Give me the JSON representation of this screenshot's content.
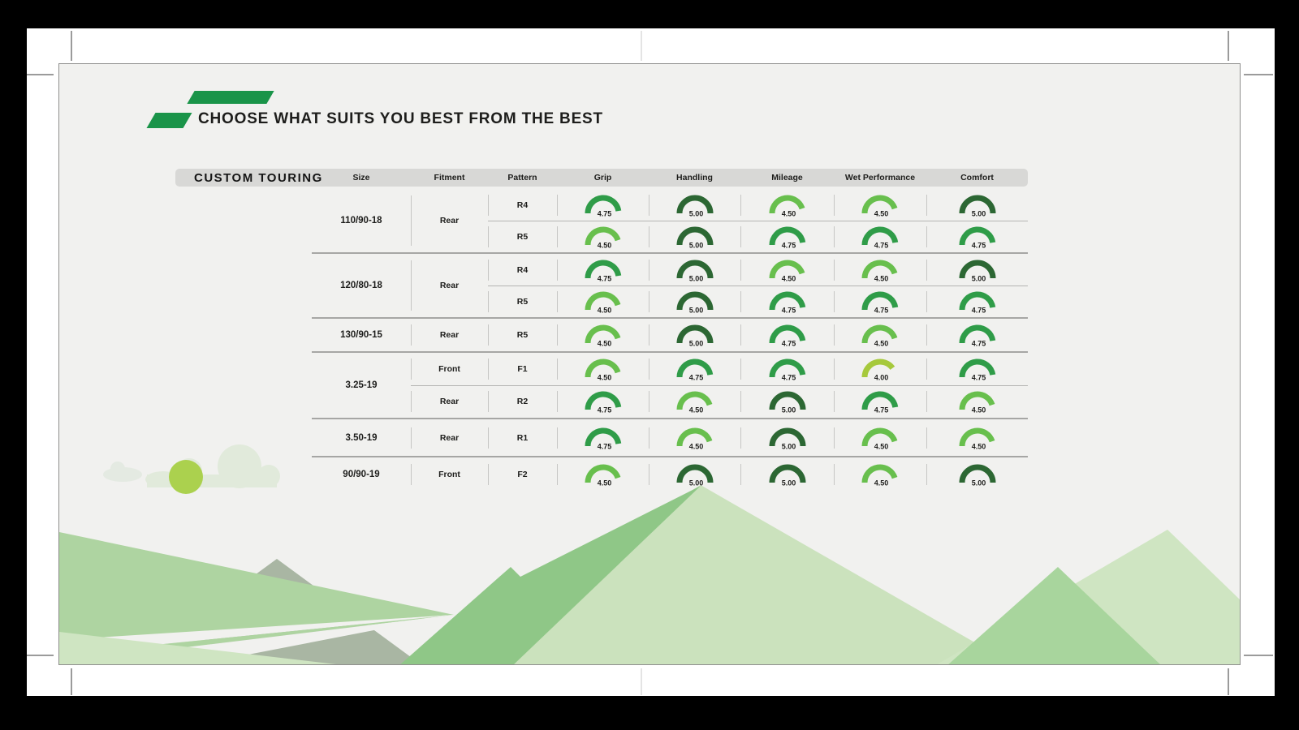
{
  "page": {
    "title": "CHOOSE WHAT SUITS YOU BEST FROM THE BEST"
  },
  "table": {
    "brand": "CUSTOM TOURING",
    "columns": [
      "Size",
      "Fitment",
      "Pattern",
      "Grip",
      "Handling",
      "Mileage",
      "Wet Performance",
      "Comfort"
    ],
    "rating_colors": {
      "5.00": "#2c6733",
      "4.75": "#2f9c48",
      "4.50": "#68bf4d",
      "4.00": "#a6c93c"
    },
    "groups": [
      {
        "size": "110/90-18",
        "fitment": "Rear",
        "rows": [
          {
            "pattern": "R4",
            "ratings": {
              "grip": "4.75",
              "handling": "5.00",
              "mileage": "4.50",
              "wet": "4.50",
              "comfort": "5.00"
            }
          },
          {
            "pattern": "R5",
            "ratings": {
              "grip": "4.50",
              "handling": "5.00",
              "mileage": "4.75",
              "wet": "4.75",
              "comfort": "4.75"
            }
          }
        ]
      },
      {
        "size": "120/80-18",
        "fitment": "Rear",
        "rows": [
          {
            "pattern": "R4",
            "ratings": {
              "grip": "4.75",
              "handling": "5.00",
              "mileage": "4.50",
              "wet": "4.50",
              "comfort": "5.00"
            }
          },
          {
            "pattern": "R5",
            "ratings": {
              "grip": "4.50",
              "handling": "5.00",
              "mileage": "4.75",
              "wet": "4.75",
              "comfort": "4.75"
            }
          }
        ]
      },
      {
        "size": "130/90-15",
        "fitment": "Rear",
        "rows": [
          {
            "pattern": "R5",
            "ratings": {
              "grip": "4.50",
              "handling": "5.00",
              "mileage": "4.75",
              "wet": "4.50",
              "comfort": "4.75"
            }
          }
        ]
      },
      {
        "size": "3.25-19",
        "rows": [
          {
            "fitment": "Front",
            "pattern": "F1",
            "ratings": {
              "grip": "4.50",
              "handling": "4.75",
              "mileage": "4.75",
              "wet": "4.00",
              "comfort": "4.75"
            }
          },
          {
            "fitment": "Rear",
            "pattern": "R2",
            "ratings": {
              "grip": "4.75",
              "handling": "4.50",
              "mileage": "5.00",
              "wet": "4.75",
              "comfort": "4.50"
            }
          }
        ]
      },
      {
        "size": "3.50-19",
        "fitment": "Rear",
        "rows": [
          {
            "pattern": "R1",
            "ratings": {
              "grip": "4.75",
              "handling": "4.50",
              "mileage": "5.00",
              "wet": "4.50",
              "comfort": "4.50"
            }
          }
        ]
      },
      {
        "size": "90/90-19",
        "fitment": "Front",
        "rows": [
          {
            "pattern": "F2",
            "ratings": {
              "grip": "4.50",
              "handling": "5.00",
              "mileage": "5.00",
              "wet": "4.50",
              "comfort": "5.00"
            }
          }
        ]
      }
    ]
  },
  "decor_colors": {
    "mountain_light": "#cbe2bd",
    "mountain_band": "#8fc787",
    "mountain_gray": "#a9b6a3",
    "hill_light": "#cfe5c2",
    "wedge_medium": "#aed4a1",
    "hill_medium": "#a8d59d",
    "cloud": "#e1eadb",
    "cloud_small": "#e4eae2",
    "sun": "#abd14e",
    "road": "#f1f1ef"
  }
}
